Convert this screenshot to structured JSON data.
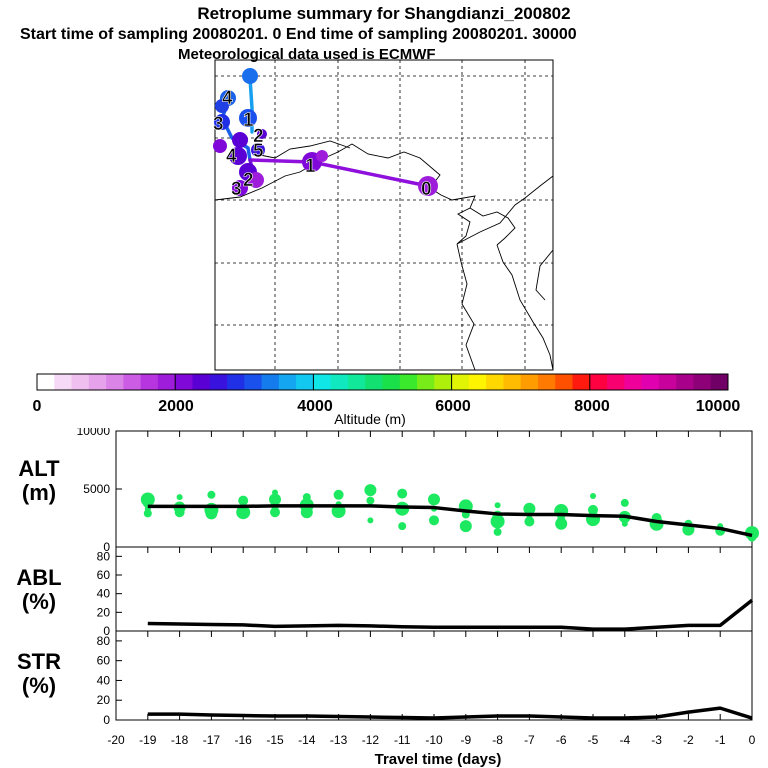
{
  "header": {
    "title": "Retroplume summary for Shangdianzi_200802",
    "line1": "Start time of sampling 20080201.     0     End time of sampling 20080201. 30000",
    "line2": "Meteorological data used is ECMWF"
  },
  "colorbar": {
    "label": "Altitude (m)",
    "tick_labels": [
      "0",
      "2000",
      "4000",
      "6000",
      "8000",
      "10000"
    ],
    "range": [
      0,
      10000
    ],
    "colors": [
      "#ffffff",
      "#f6d9f6",
      "#efc0ef",
      "#e6a3ec",
      "#db84e8",
      "#cc5ce3",
      "#b635de",
      "#9d1ddb",
      "#8008d8",
      "#5b00d4",
      "#3a12de",
      "#2030e6",
      "#1a50ec",
      "#157cee",
      "#14a6f0",
      "#12c8f0",
      "#10e6e6",
      "#10e8c0",
      "#12e89a",
      "#12e070",
      "#1ae04a",
      "#3ae82c",
      "#78ec18",
      "#aef00c",
      "#e0f404",
      "#fff400",
      "#ffd800",
      "#ffbc00",
      "#ff9c00",
      "#ff7a00",
      "#ff5000",
      "#ff1a10",
      "#ff0040",
      "#f80070",
      "#f0009a",
      "#e000b0",
      "#c8009c",
      "#a8008a",
      "#8e0078",
      "#700066"
    ]
  },
  "map": {
    "trajectory_labels": [
      "0",
      "1",
      "2",
      "3",
      "4",
      "1",
      "2",
      "3",
      "4",
      "5"
    ]
  },
  "chart_data": [
    {
      "type": "line",
      "panel": "ALT",
      "ylabel": "ALT\n(m)",
      "label_line1": "ALT",
      "label_line2": "(m)",
      "ylim": [
        0,
        10000
      ],
      "y_ticks": [
        "10000",
        "5000",
        "0"
      ],
      "x": [
        -19,
        -18,
        -17,
        -16,
        -15,
        -14,
        -13,
        -12,
        -11,
        -10,
        -9,
        -8,
        -7,
        -6,
        -5,
        -4,
        -3,
        -2,
        -1,
        0
      ],
      "values": [
        3500,
        3500,
        3500,
        3500,
        3550,
        3550,
        3550,
        3550,
        3450,
        3400,
        3100,
        2850,
        2800,
        2800,
        2700,
        2650,
        2200,
        1900,
        1600,
        1000
      ],
      "scatter_points": [
        [
          -19,
          3300
        ],
        [
          -19,
          3800
        ],
        [
          -19,
          4100
        ],
        [
          -19,
          2900
        ],
        [
          -18,
          3400
        ],
        [
          -18,
          4300
        ],
        [
          -18,
          3000
        ],
        [
          -17,
          3200
        ],
        [
          -17,
          4500
        ],
        [
          -17,
          2900
        ],
        [
          -16,
          3500
        ],
        [
          -16,
          4000
        ],
        [
          -16,
          3000
        ],
        [
          -15,
          3600
        ],
        [
          -15,
          4100
        ],
        [
          -15,
          4700
        ],
        [
          -15,
          3000
        ],
        [
          -14,
          3600
        ],
        [
          -14,
          4300
        ],
        [
          -14,
          3000
        ],
        [
          -13,
          3700
        ],
        [
          -13,
          4500
        ],
        [
          -13,
          3100
        ],
        [
          -12,
          4000
        ],
        [
          -12,
          4900
        ],
        [
          -12,
          2300
        ],
        [
          -11,
          4600
        ],
        [
          -11,
          3300
        ],
        [
          -11,
          1800
        ],
        [
          -10,
          4100
        ],
        [
          -10,
          3300
        ],
        [
          -10,
          2300
        ],
        [
          -9,
          3500
        ],
        [
          -9,
          2800
        ],
        [
          -9,
          1800
        ],
        [
          -8,
          3600
        ],
        [
          -8,
          2700
        ],
        [
          -8,
          2200
        ],
        [
          -8,
          1300
        ],
        [
          -7,
          3300
        ],
        [
          -7,
          2500
        ],
        [
          -7,
          2200
        ],
        [
          -6,
          3100
        ],
        [
          -6,
          2400
        ],
        [
          -6,
          2000
        ],
        [
          -5,
          4400
        ],
        [
          -5,
          3200
        ],
        [
          -5,
          2400
        ],
        [
          -4,
          3800
        ],
        [
          -4,
          2600
        ],
        [
          -4,
          2000
        ],
        [
          -3,
          2500
        ],
        [
          -3,
          2000
        ],
        [
          -2,
          2000
        ],
        [
          -2,
          1500
        ],
        [
          -1,
          1800
        ],
        [
          -1,
          1400
        ],
        [
          0,
          1200
        ],
        [
          0,
          800
        ]
      ]
    },
    {
      "type": "line",
      "panel": "ABL",
      "label_line1": "ABL",
      "label_line2": "(%)",
      "ylim": [
        0,
        90
      ],
      "y_ticks": [
        "80",
        "60",
        "40",
        "20",
        "0"
      ],
      "x": [
        -19,
        -18,
        -17,
        -16,
        -15,
        -14,
        -13,
        -12,
        -11,
        -10,
        -9,
        -8,
        -7,
        -6,
        -5,
        -4,
        -3,
        -2,
        -1,
        0
      ],
      "values": [
        8,
        7.5,
        7,
        6.5,
        5,
        5.5,
        6,
        5.5,
        4.5,
        4,
        4,
        4,
        4,
        4,
        2,
        2,
        4,
        6,
        6,
        33
      ]
    },
    {
      "type": "line",
      "panel": "STR",
      "label_line1": "STR",
      "label_line2": "(%)",
      "ylim": [
        0,
        90
      ],
      "y_ticks": [
        "80",
        "60",
        "40",
        "20",
        "0"
      ],
      "x": [
        -19,
        -18,
        -17,
        -16,
        -15,
        -14,
        -13,
        -12,
        -11,
        -10,
        -9,
        -8,
        -7,
        -6,
        -5,
        -4,
        -3,
        -2,
        -1,
        0
      ],
      "values": [
        6,
        6,
        5,
        4.5,
        4,
        4,
        3.5,
        3,
        2.5,
        2,
        3,
        4,
        4,
        3,
        2,
        2,
        3,
        8,
        12,
        2
      ]
    }
  ],
  "xaxis": {
    "label": "Travel time (days)",
    "tick_labels": [
      "-20",
      "-19",
      "-18",
      "-17",
      "-16",
      "-15",
      "-14",
      "-13",
      "-12",
      "-11",
      "-10",
      "-9",
      "-8",
      "-7",
      "-6",
      "-5",
      "-4",
      "-3",
      "-2",
      "-1",
      "0"
    ]
  }
}
